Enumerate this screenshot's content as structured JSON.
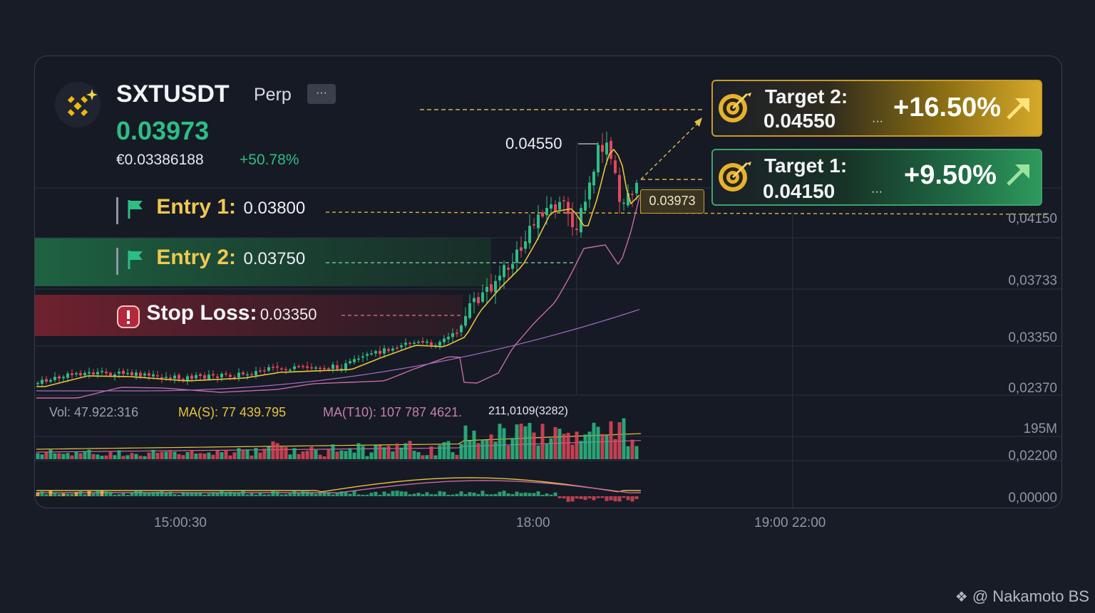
{
  "header": {
    "symbol": "SXTUSDT",
    "market": "Perp",
    "more_label": "···",
    "price": "0.03973",
    "fiat_price": "€0.03386188",
    "change": "+50.78%"
  },
  "levels": {
    "entry1": {
      "label": "Entry 1:",
      "value": "0.03800"
    },
    "entry2": {
      "label": "Entry 2:",
      "value": "0.03750"
    },
    "stop": {
      "label": "Stop Loss:",
      "value": "0.03350"
    }
  },
  "targets": {
    "t2": {
      "title": "Target 2:",
      "value": "0.04550",
      "dots": "···",
      "pct": "+16.50%"
    },
    "t1": {
      "title": "Target 1:",
      "value": "0.04150",
      "dots": "···",
      "pct": "+9.50%"
    }
  },
  "annotations": {
    "peak_label": "0.04550",
    "current_tag": "0.03973"
  },
  "axis": {
    "price_ticks": [
      "0,04150",
      "0,03733",
      "0,03350",
      "0,02370"
    ],
    "volume_ticks": [
      "195M",
      "0,02200",
      "0,00000"
    ],
    "time_ticks": [
      "15:00:30",
      "18:00",
      "19:00 22:00"
    ]
  },
  "volume_stats": {
    "vol": "Vol: 47.922:316",
    "ma_s": "MA(S): 77 439.795",
    "ma_t10": "MA(T10): 107 787 4621.",
    "extra": "211,0109(3282)"
  },
  "watermark": "@ Nakamoto BS",
  "colors": {
    "up": "#2ebd85",
    "down": "#e2485b",
    "gold": "#f0c850",
    "ma_fast": "#e7c33d",
    "ma_slow": "#c86aa5"
  },
  "icons": {
    "logo": "binance-logo-icon",
    "flag": "flag-icon",
    "warning": "warning-icon",
    "target": "target-dart-icon",
    "arrow": "arrow-up-right-icon"
  },
  "chart_data": {
    "type": "candlestick",
    "title": "",
    "ylim": [
      0.0237,
      0.0455
    ],
    "levels": {
      "entry1": 0.038,
      "entry2": 0.0375,
      "stop_loss": 0.0335,
      "target1": 0.0415,
      "target2": 0.0455
    },
    "current_price": 0.03973,
    "peak": 0.0455,
    "time_labels": [
      "15:00:30",
      "18:00",
      "19:00 22:00"
    ]
  }
}
